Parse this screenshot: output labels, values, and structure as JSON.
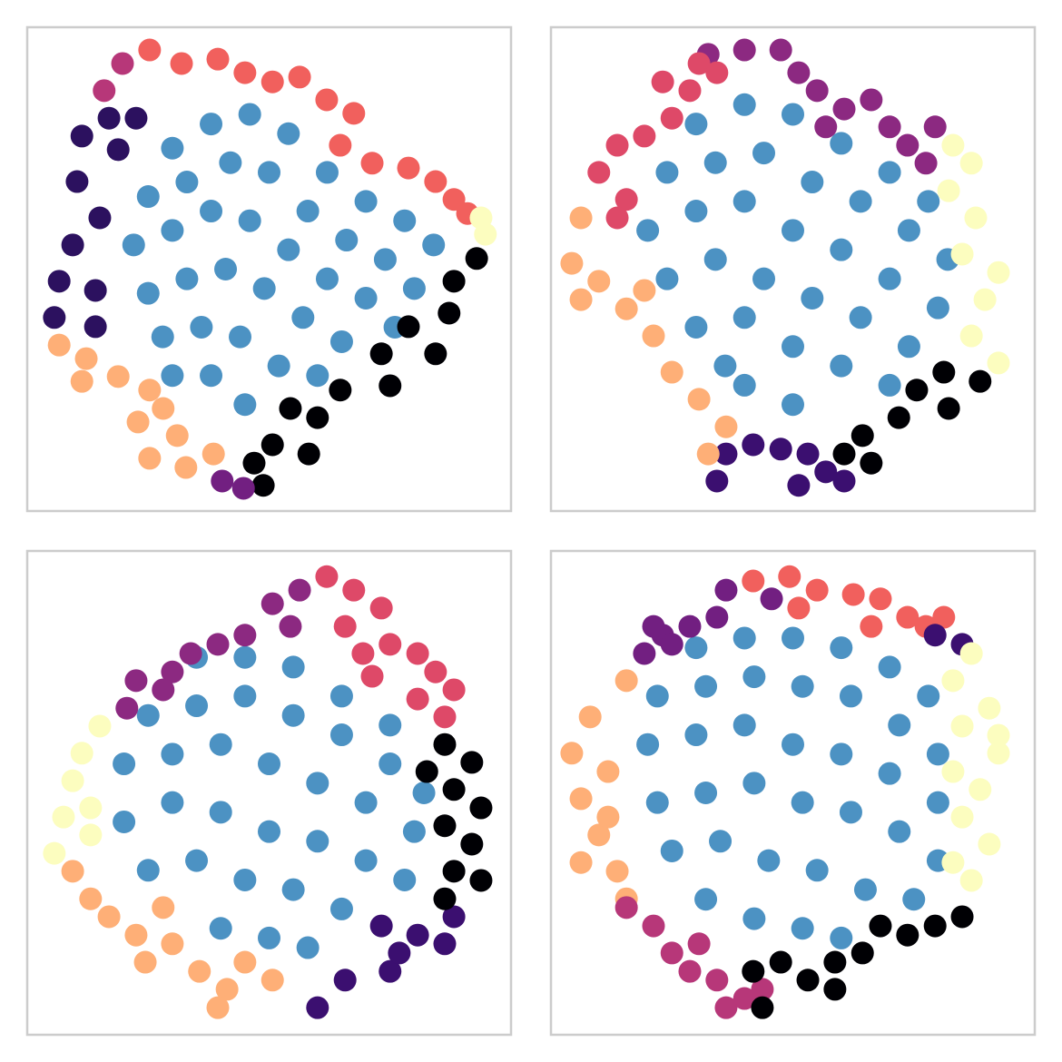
{
  "chart_data": [
    {
      "type": "scatter",
      "xlim": [
        0,
        100
      ],
      "ylim": [
        0,
        100
      ],
      "series": [
        {
          "color": "#1f77b4",
          "alpha": 0.8,
          "x": [
            30,
            38,
            46,
            54,
            62,
            70,
            78,
            84,
            25,
            33,
            42,
            50,
            58,
            66,
            74,
            80,
            22,
            30,
            38,
            46,
            54,
            62,
            70,
            76,
            25,
            33,
            41,
            49,
            57,
            65,
            28,
            36,
            44,
            52,
            60,
            38,
            45,
            30
          ],
          "y": [
            75,
            80,
            82,
            78,
            70,
            64,
            60,
            55,
            65,
            68,
            72,
            70,
            62,
            56,
            52,
            46,
            55,
            58,
            62,
            60,
            54,
            48,
            44,
            38,
            45,
            48,
            50,
            46,
            40,
            35,
            36,
            38,
            36,
            30,
            28,
            28,
            22,
            28
          ]
        },
        {
          "color": "#f1605d",
          "x": [
            25.3,
            31.9,
            39.4,
            45.0,
            50.7,
            56.3,
            61.9,
            67.5,
            64.7,
            71.3,
            78.8,
            84.4,
            88.2,
            91.0
          ],
          "y": [
            95.3,
            92.5,
            93.4,
            90.6,
            88.7,
            89.7,
            85.0,
            82.2,
            75.6,
            71.9,
            70.9,
            68.1,
            64.4,
            61.5
          ]
        },
        {
          "color": "#fcfdbf",
          "x": [
            93.8,
            94.7
          ],
          "y": [
            60.6,
            57.2
          ]
        },
        {
          "color": "#000004",
          "x": [
            92.9,
            88.2,
            87.2,
            78.8,
            73.2,
            84.4,
            75.0,
            64.7,
            60.0,
            54.4,
            50.7,
            46.9,
            48.8,
            58.2
          ],
          "y": [
            52.2,
            47.5,
            40.9,
            38.1,
            32.5,
            32.5,
            25.9,
            25.0,
            19.3,
            21.2,
            13.7,
            9.9,
            5.3,
            11.8
          ]
        },
        {
          "color": "#721f81",
          "x": [
            40.3,
            44.7
          ],
          "y": [
            6.2,
            4.7
          ]
        },
        {
          "color": "#feaf77",
          "x": [
            6.6,
            12.2,
            18.8,
            25.3,
            22.9,
            28.1,
            31.0,
            25.3,
            32.8,
            38.5,
            11.3
          ],
          "y": [
            34.3,
            31.5,
            27.8,
            25.0,
            18.4,
            21.2,
            15.6,
            10.9,
            9.0,
            11.8,
            26.8
          ]
        },
        {
          "color": "#2c115f",
          "x": [
            16.9,
            11.3,
            18.8,
            10.3,
            15.0,
            9.4,
            6.6,
            14.1,
            5.6,
            14.1,
            22.5
          ],
          "y": [
            81.2,
            77.5,
            74.7,
            68.1,
            60.6,
            55.0,
            47.5,
            45.6,
            40.0,
            38.1,
            81.2
          ]
        },
        {
          "color": "#b73779",
          "x": [
            19.7,
            15.9
          ],
          "y": [
            92.5,
            86.9
          ]
        }
      ]
    },
    {
      "type": "scatter",
      "xlim": [
        0,
        100
      ],
      "ylim": [
        0,
        100
      ],
      "series": [
        {
          "color": "#1f77b4",
          "alpha": 0.8,
          "x": [
            30,
            40,
            50,
            60,
            70,
            78,
            24,
            34,
            44,
            54,
            64,
            74,
            82,
            20,
            30,
            40,
            50,
            60,
            70,
            80,
            24,
            34,
            44,
            54,
            64,
            74,
            30,
            40,
            50,
            60,
            70,
            40,
            50,
            36
          ],
          "y": [
            80,
            84,
            82,
            76,
            70,
            64,
            70,
            72,
            74,
            68,
            64,
            58,
            52,
            58,
            62,
            64,
            58,
            54,
            48,
            42,
            48,
            52,
            48,
            44,
            40,
            34,
            38,
            40,
            34,
            30,
            26,
            26,
            22,
            30
          ]
        },
        {
          "color": "#8c2981",
          "x": [
            32.5,
            40.0,
            47.5,
            51.2,
            55.0,
            60.6,
            66.2,
            70.0,
            73.7,
            77.5,
            79.4,
            56.8
          ],
          "y": [
            94.4,
            95.3,
            95.3,
            90.6,
            86.9,
            83.1,
            85.0,
            79.4,
            75.6,
            71.9,
            79.4,
            79.4
          ]
        },
        {
          "color": "#de4968",
          "x": [
            23.1,
            28.7,
            25.0,
            19.3,
            13.7,
            9.9,
            15.6,
            13.7,
            30.6,
            34.3
          ],
          "y": [
            88.7,
            86.9,
            81.2,
            77.5,
            75.6,
            70.0,
            64.4,
            60.6,
            92.5,
            90.6
          ]
        },
        {
          "color": "#fcfdbf",
          "x": [
            83.1,
            86.9,
            82.2,
            87.8,
            92.5,
            89.7,
            86.9,
            92.5,
            85.0
          ],
          "y": [
            75.6,
            71.9,
            66.2,
            60.6,
            49.3,
            43.7,
            36.2,
            30.6,
            53.1
          ]
        },
        {
          "color": "#000004",
          "x": [
            81.2,
            75.6,
            71.9,
            64.4,
            60.6,
            66.2,
            82.2,
            88.7
          ],
          "y": [
            28.7,
            25.0,
            19.3,
            15.6,
            11.8,
            9.9,
            21.2,
            26.8
          ]
        },
        {
          "color": "#3b0f70",
          "x": [
            36.2,
            41.8,
            47.5,
            53.1,
            56.8,
            51.2,
            60.6,
            34.3
          ],
          "y": [
            11.8,
            13.7,
            12.8,
            11.8,
            8.1,
            5.3,
            6.2,
            6.2
          ]
        },
        {
          "color": "#feaf77",
          "x": [
            6.2,
            4.3,
            9.9,
            15.6,
            21.2,
            25.0,
            30.6,
            36.2,
            32.5,
            19.3,
            6.2
          ],
          "y": [
            60.6,
            51.2,
            47.5,
            41.8,
            36.2,
            28.7,
            23.1,
            17.4,
            11.8,
            45.6,
            43.7
          ]
        }
      ]
    },
    {
      "type": "scatter",
      "xlim": [
        0,
        100
      ],
      "ylim": [
        0,
        100
      ],
      "series": [
        {
          "color": "#1f77b4",
          "alpha": 0.8,
          "x": [
            35,
            45,
            55,
            65,
            75,
            25,
            35,
            45,
            55,
            65,
            75,
            82,
            20,
            30,
            40,
            50,
            60,
            70,
            80,
            20,
            30,
            40,
            50,
            60,
            70,
            78,
            25,
            35,
            45,
            55,
            65,
            40,
            50,
            58
          ],
          "y": [
            78,
            78,
            76,
            70,
            64,
            66,
            68,
            70,
            66,
            62,
            56,
            50,
            56,
            58,
            60,
            56,
            52,
            48,
            42,
            44,
            48,
            46,
            42,
            40,
            36,
            32,
            34,
            36,
            32,
            30,
            26,
            22,
            20,
            18
          ]
        },
        {
          "color": "#de4968",
          "x": [
            61.9,
            67.5,
            73.2,
            65.7,
            69.4,
            75.0,
            80.7,
            84.4,
            80.7,
            86.3,
            88.2,
            71.3
          ],
          "y": [
            94.7,
            91.9,
            88.2,
            84.4,
            78.8,
            80.7,
            78.8,
            75.0,
            69.4,
            65.7,
            71.3,
            74.1
          ]
        },
        {
          "color": "#8c2981",
          "x": [
            50.7,
            54.4,
            45.0,
            39.4,
            33.8,
            30.0,
            22.5,
            20.6,
            28.1,
            56.3
          ],
          "y": [
            89.1,
            84.4,
            82.6,
            80.7,
            78.8,
            75.0,
            73.2,
            67.5,
            71.3,
            91.9
          ]
        },
        {
          "color": "#fcfdbf",
          "x": [
            15.0,
            11.3,
            9.4,
            13.1,
            7.5,
            5.6,
            13.1
          ],
          "y": [
            63.8,
            58.2,
            52.5,
            46.9,
            45.0,
            37.5,
            41.3
          ]
        },
        {
          "color": "#feaf77",
          "x": [
            9.4,
            13.1,
            16.9,
            22.5,
            24.4,
            30.0,
            35.6,
            41.3,
            39.4,
            45.0,
            50.7,
            28.1
          ],
          "y": [
            33.8,
            28.1,
            24.4,
            20.6,
            15.0,
            18.8,
            13.1,
            9.4,
            5.6,
            15.0,
            11.3,
            26.3
          ]
        },
        {
          "color": "#3b0f70",
          "x": [
            60.0,
            65.7,
            75.0,
            76.9,
            80.7,
            86.3,
            88.2,
            73.2
          ],
          "y": [
            5.6,
            11.3,
            13.1,
            16.9,
            20.6,
            18.8,
            24.4,
            22.5
          ]
        },
        {
          "color": "#000004",
          "x": [
            86.3,
            91.9,
            88.2,
            93.8,
            86.3,
            91.9,
            88.2,
            93.8,
            86.3,
            82.6
          ],
          "y": [
            60.0,
            56.3,
            50.7,
            46.9,
            43.2,
            39.4,
            33.8,
            31.9,
            28.1,
            54.4
          ]
        }
      ]
    },
    {
      "type": "scatter",
      "xlim": [
        0,
        100
      ],
      "ylim": [
        0,
        100
      ],
      "series": [
        {
          "color": "#1f77b4",
          "alpha": 0.8,
          "x": [
            30,
            40,
            50,
            60,
            70,
            78,
            22,
            32,
            42,
            52,
            62,
            72,
            80,
            20,
            30,
            40,
            50,
            60,
            70,
            80,
            22,
            32,
            42,
            52,
            62,
            72,
            80,
            25,
            35,
            45,
            55,
            65,
            75,
            32,
            42,
            52,
            60
          ],
          "y": [
            80,
            82,
            82,
            80,
            76,
            70,
            70,
            72,
            74,
            72,
            70,
            64,
            58,
            60,
            62,
            64,
            60,
            58,
            54,
            48,
            48,
            50,
            52,
            48,
            46,
            42,
            36,
            38,
            40,
            36,
            34,
            30,
            28,
            28,
            24,
            22,
            20
          ]
        },
        {
          "color": "#f1605d",
          "x": [
            41.8,
            49.3,
            55.0,
            62.5,
            68.1,
            66.2,
            73.7,
            77.5,
            51.2,
            81.2
          ],
          "y": [
            93.8,
            94.7,
            91.9,
            91.0,
            90.1,
            84.4,
            86.3,
            84.4,
            88.2,
            86.3
          ]
        },
        {
          "color": "#3b0f70",
          "x": [
            79.4,
            85.0
          ],
          "y": [
            82.6,
            80.7
          ]
        },
        {
          "color": "#721f81",
          "x": [
            36.2,
            34.3,
            28.7,
            23.1,
            19.3,
            25.0,
            21.2,
            45.6
          ],
          "y": [
            91.9,
            86.3,
            84.4,
            82.6,
            78.8,
            80.7,
            84.4,
            90.1
          ]
        },
        {
          "color": "#fcfdbf",
          "x": [
            86.9,
            83.1,
            90.6,
            85.0,
            92.5,
            83.1,
            88.7,
            85.0,
            90.6,
            83.1,
            86.9,
            92.5
          ],
          "y": [
            78.8,
            73.2,
            67.5,
            63.8,
            58.2,
            54.4,
            50.7,
            45.0,
            39.4,
            35.6,
            31.9,
            61.9
          ]
        },
        {
          "color": "#feaf77",
          "x": [
            15.6,
            8.1,
            4.3,
            11.8,
            6.2,
            9.9,
            6.2,
            13.7,
            11.8,
            15.6
          ],
          "y": [
            73.2,
            65.7,
            58.2,
            54.4,
            48.8,
            41.3,
            35.6,
            33.8,
            45.0,
            28.1
          ]
        },
        {
          "color": "#b73779",
          "x": [
            15.6,
            21.2,
            25.0,
            28.7,
            34.3,
            40.0,
            36.2,
            43.7,
            30.6
          ],
          "y": [
            26.3,
            22.5,
            16.9,
            13.1,
            11.3,
            7.5,
            5.6,
            9.4,
            18.8
          ]
        },
        {
          "color": "#000004",
          "x": [
            41.8,
            47.5,
            53.1,
            58.7,
            64.4,
            68.1,
            73.7,
            79.4,
            85.0,
            58.7,
            43.7
          ],
          "y": [
            13.1,
            15.0,
            11.3,
            15.0,
            16.9,
            22.5,
            20.6,
            22.5,
            24.4,
            9.4,
            5.6
          ]
        }
      ]
    }
  ]
}
